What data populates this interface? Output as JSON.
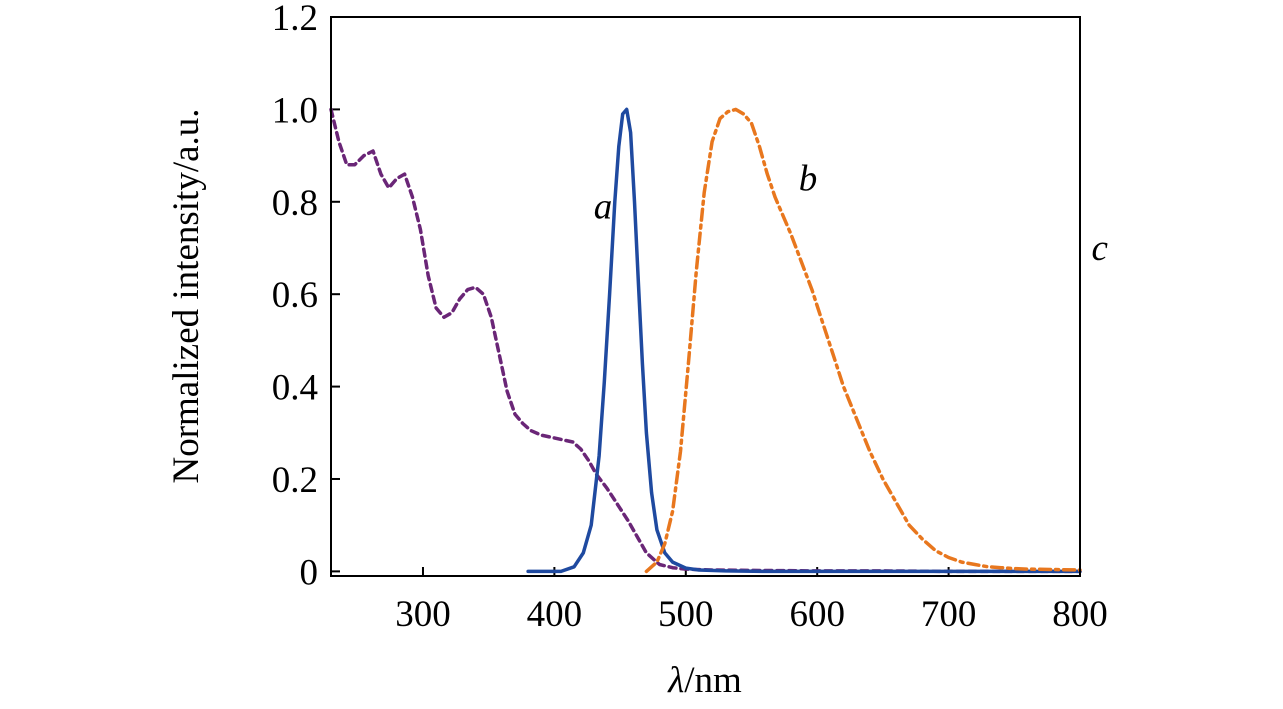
{
  "chart_data": {
    "type": "line",
    "xlabel": {
      "symbol": "λ",
      "unit": "/nm"
    },
    "ylabel": "Normalized intensity/a.u.",
    "xlim": [
      230,
      800
    ],
    "ylim": [
      -0.01,
      1.2
    ],
    "xticks": [
      300,
      400,
      500,
      600,
      700,
      800
    ],
    "xtick_labels": [
      "300",
      "400",
      "500",
      "600",
      "700",
      "800"
    ],
    "yticks": [
      0,
      0.2,
      0.4,
      0.6,
      0.8,
      1.0,
      1.2
    ],
    "ytick_labels": [
      "0",
      "0.2",
      "0.4",
      "0.6",
      "0.8",
      "1.0",
      "1.2"
    ],
    "grid": false,
    "series": [
      {
        "name": "a",
        "color": "#6a2677",
        "dash": "dash",
        "label_pos": [
          437,
          0.79
        ],
        "x": [
          230,
          236,
          242,
          248,
          255,
          262,
          268,
          274,
          280,
          286,
          292,
          298,
          304,
          310,
          316,
          322,
          328,
          334,
          340,
          346,
          352,
          358,
          364,
          370,
          376,
          382,
          390,
          398,
          406,
          414,
          420,
          426,
          432,
          440,
          448,
          456,
          462,
          470,
          480,
          490,
          500,
          520,
          560,
          600,
          650,
          700,
          750,
          800
        ],
        "y": [
          1.0,
          0.93,
          0.88,
          0.88,
          0.9,
          0.91,
          0.86,
          0.83,
          0.85,
          0.86,
          0.81,
          0.74,
          0.64,
          0.57,
          0.55,
          0.56,
          0.59,
          0.61,
          0.615,
          0.6,
          0.55,
          0.47,
          0.39,
          0.34,
          0.32,
          0.305,
          0.295,
          0.29,
          0.285,
          0.28,
          0.265,
          0.24,
          0.21,
          0.18,
          0.145,
          0.11,
          0.08,
          0.04,
          0.015,
          0.008,
          0.005,
          0.003,
          0.002,
          0.001,
          0.001,
          0.0,
          0.0,
          0.0
        ]
      },
      {
        "name": "b",
        "color": "#1f4aa0",
        "dash": "solid",
        "label_pos": [
          593,
          0.85
        ],
        "x": [
          380,
          395,
          405,
          415,
          422,
          428,
          434,
          438,
          442,
          446,
          449,
          452,
          455,
          458,
          461,
          464,
          467,
          470,
          474,
          478,
          484,
          490,
          500,
          510,
          530,
          560,
          600,
          650,
          700,
          750,
          800
        ],
        "y": [
          0.0,
          0.0,
          0.0,
          0.01,
          0.04,
          0.1,
          0.25,
          0.41,
          0.6,
          0.8,
          0.92,
          0.99,
          1.0,
          0.95,
          0.8,
          0.62,
          0.45,
          0.3,
          0.17,
          0.09,
          0.04,
          0.02,
          0.007,
          0.003,
          0.001,
          0.0,
          0.0,
          0.0,
          0.0,
          0.0,
          0.0
        ]
      },
      {
        "name": "c",
        "color": "#e8771e",
        "dash": "dashdot",
        "label_pos": [
          815,
          0.7
        ],
        "x": [
          470,
          478,
          484,
          490,
          496,
          502,
          508,
          514,
          520,
          526,
          532,
          538,
          544,
          550,
          556,
          562,
          568,
          574,
          580,
          588,
          596,
          604,
          612,
          620,
          630,
          640,
          650,
          660,
          670,
          680,
          690,
          700,
          710,
          720,
          730,
          740,
          750,
          760,
          780,
          800
        ],
        "y": [
          0.0,
          0.02,
          0.06,
          0.13,
          0.26,
          0.45,
          0.65,
          0.82,
          0.93,
          0.98,
          0.995,
          1.0,
          0.99,
          0.97,
          0.92,
          0.86,
          0.81,
          0.77,
          0.73,
          0.67,
          0.61,
          0.54,
          0.47,
          0.4,
          0.33,
          0.26,
          0.2,
          0.15,
          0.1,
          0.07,
          0.045,
          0.03,
          0.02,
          0.015,
          0.01,
          0.008,
          0.006,
          0.005,
          0.004,
          0.003
        ]
      }
    ]
  }
}
